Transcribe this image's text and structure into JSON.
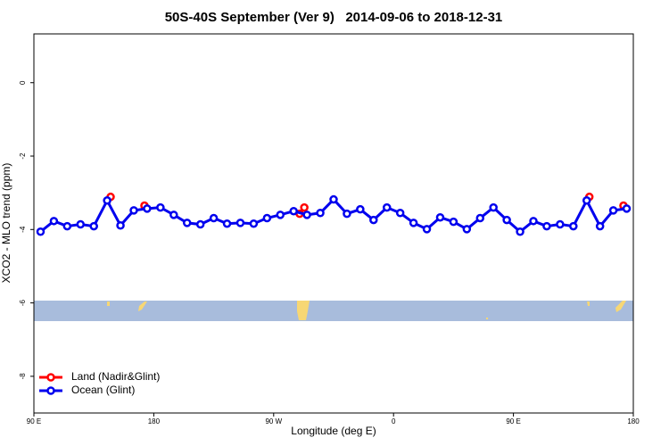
{
  "chart_data": {
    "type": "line",
    "title": "50S-40S September (Ver 9)   2014-09-06 to 2018-12-31",
    "x_label": "Longitude (deg E)",
    "y_label": "XCO2 - MLO trend (ppm)",
    "xlim": [
      90,
      540
    ],
    "ylim": [
      -9.0,
      1.33
    ],
    "xticks": [
      {
        "value": 90,
        "label": "90 E"
      },
      {
        "value": 180,
        "label": "180"
      },
      {
        "value": 270,
        "label": "90 W"
      },
      {
        "value": 360,
        "label": "0"
      },
      {
        "value": 450,
        "label": "90 E"
      },
      {
        "value": 540,
        "label": "180"
      }
    ],
    "yticks": [
      0,
      -2,
      -4,
      -6,
      -8
    ],
    "legend": "bottom-left",
    "series": [
      {
        "name": "Land (Nadir&Glint)",
        "color": "#ff0000",
        "connect": false,
        "x": [
          147.6,
          173,
          289.5,
          293,
          507,
          532.6
        ],
        "values": [
          -3.11,
          -3.35,
          -3.57,
          -3.4,
          -3.11,
          -3.35
        ]
      },
      {
        "name": "Ocean (Glint)",
        "color": "#0000ee",
        "connect": true,
        "x": [
          95,
          105,
          115,
          125,
          135,
          145,
          155,
          165,
          175,
          185,
          195,
          205,
          215,
          225,
          235,
          245,
          255,
          265,
          275,
          285,
          295,
          305,
          315,
          325,
          335,
          345,
          355,
          365,
          375,
          385,
          395,
          405,
          415,
          425,
          435,
          445,
          455,
          465,
          475,
          485,
          495,
          505,
          515,
          525,
          535
        ],
        "values": [
          -4.06,
          -3.77,
          -3.91,
          -3.86,
          -3.91,
          -3.21,
          -3.89,
          -3.48,
          -3.43,
          -3.4,
          -3.6,
          -3.82,
          -3.86,
          -3.69,
          -3.84,
          -3.82,
          -3.84,
          -3.69,
          -3.6,
          -3.5,
          -3.6,
          -3.55,
          -3.18,
          -3.57,
          -3.45,
          -3.74,
          -3.4,
          -3.55,
          -3.82,
          -3.99,
          -3.67,
          -3.79,
          -3.99,
          -3.69,
          -3.4,
          -3.74,
          -4.06,
          -3.77,
          -3.91,
          -3.86,
          -3.91,
          -3.21,
          -3.91,
          -3.48,
          -3.43
        ]
      }
    ]
  }
}
